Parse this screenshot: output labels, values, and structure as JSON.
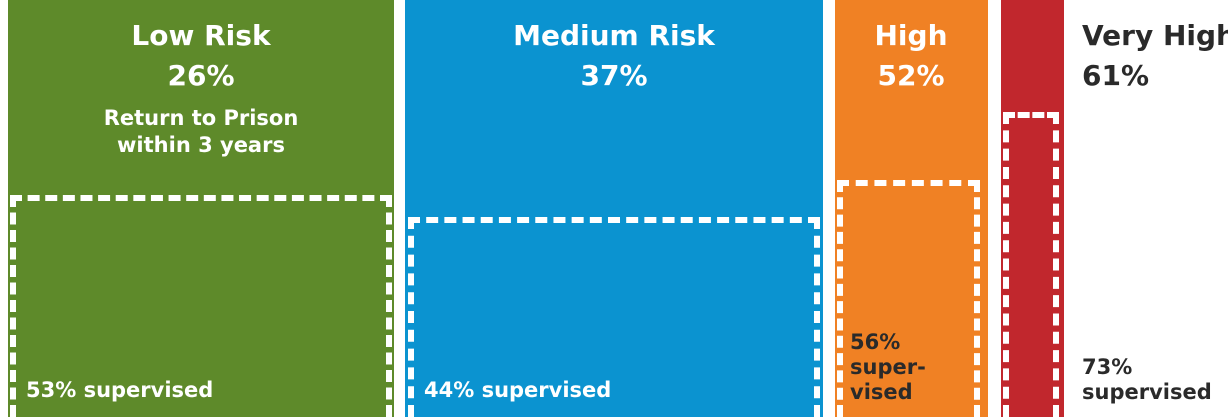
{
  "chart_data": {
    "type": "bar",
    "categories": [
      "Low Risk",
      "Medium Risk",
      "High",
      "Very High"
    ],
    "series": [
      {
        "name": "Return to Prison within 3 years",
        "values": [
          26,
          37,
          52,
          61
        ]
      },
      {
        "name": "supervised",
        "values": [
          53,
          44,
          56,
          73
        ]
      }
    ],
    "colors": [
      "#5e8a2a",
      "#0b93d0",
      "#f08124",
      "#c1272d"
    ],
    "labels": {
      "low_title": "Low Risk",
      "low_rate": "26%",
      "subtitle_line1": "Return to Prison",
      "subtitle_line2": "within 3 years",
      "low_supervised": "53% supervised",
      "medium_title": "Medium Risk",
      "medium_rate": "37%",
      "medium_supervised": "44% supervised",
      "high_title": "High",
      "high_rate": "52%",
      "high_supervised_1": "56%",
      "high_supervised_2": "super-",
      "high_supervised_3": "vised",
      "veryhigh_title": "Very High",
      "veryhigh_rate": "61%",
      "veryhigh_supervised_1": "73%",
      "veryhigh_supervised_2": "supervised"
    }
  }
}
